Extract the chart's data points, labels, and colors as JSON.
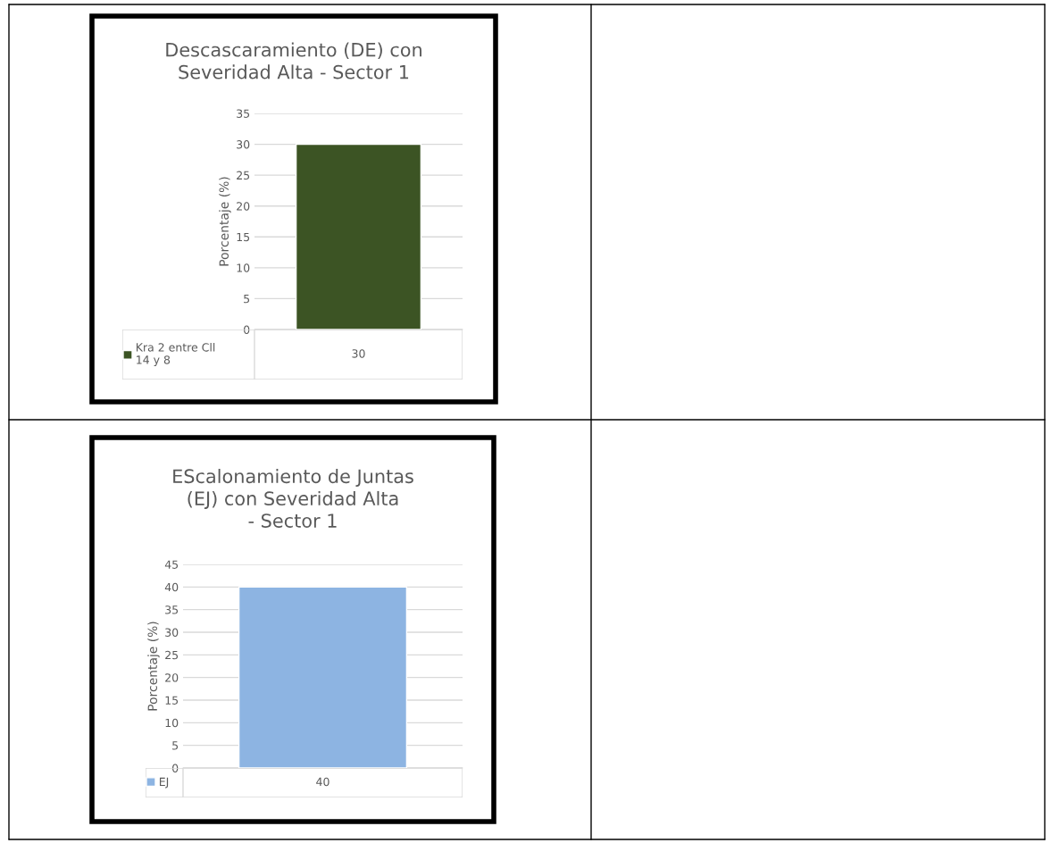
{
  "chart_data": [
    {
      "type": "bar",
      "title": "Descascaramiento (DE) con Severidad Alta - Sector 1",
      "ylabel": "Porcentaje (%)",
      "categories": [
        null
      ],
      "series": [
        {
          "name": "Kra 2 entre Cll 14 y 8",
          "color": "#3c5424",
          "values": [
            30
          ]
        }
      ],
      "ylim": [
        0,
        35
      ],
      "yticks": [
        0,
        5,
        10,
        15,
        20,
        25,
        30,
        35
      ],
      "grid": "y",
      "data_labels": true,
      "legend": "bottom"
    },
    {
      "type": "bar",
      "title": "EScalonamiento de Juntas (EJ) con Severidad Alta - Sector 1",
      "ylabel": "Porcentaje (%)",
      "categories": [
        null
      ],
      "series": [
        {
          "name": "EJ",
          "color": "#8db4e2",
          "values": [
            40
          ]
        }
      ],
      "ylim": [
        0,
        45
      ],
      "yticks": [
        0,
        5,
        10,
        15,
        20,
        25,
        30,
        35,
        40,
        45
      ],
      "grid": "y",
      "data_labels": true,
      "legend": "bottom"
    }
  ]
}
